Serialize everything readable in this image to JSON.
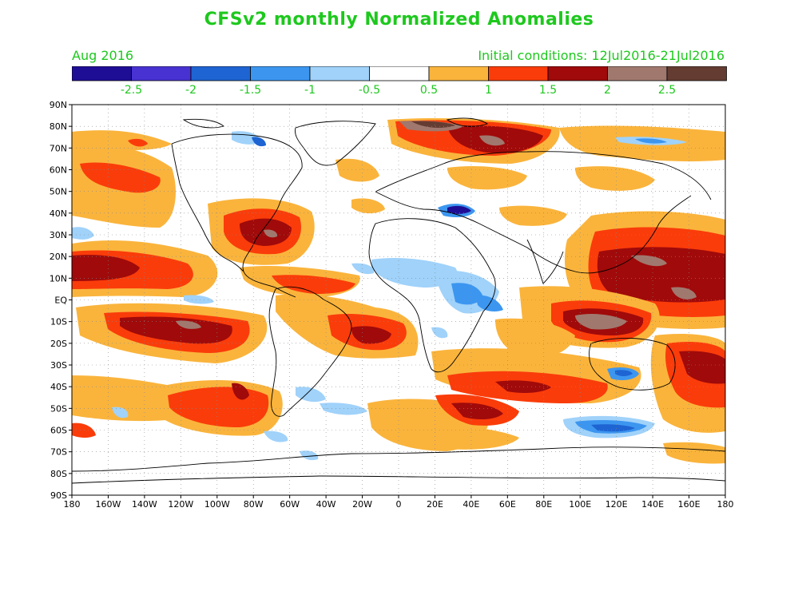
{
  "title": "CFSv2 monthly Normalized Anomalies",
  "target_month": "Aug 2016",
  "initial_conditions": "Initial conditions: 12Jul2016-21Jul2016",
  "colorbar": {
    "colors": [
      "#1e0e96",
      "#4832d2",
      "#1e64d2",
      "#3c96f0",
      "#a0d2fa",
      "#ffffff",
      "#fab43c",
      "#fa3c0a",
      "#a00a0a",
      "#a0786e",
      "#643c32"
    ],
    "labels": [
      "-2.5",
      "-2",
      "-1.5",
      "-1",
      "-0.5",
      "0.5",
      "1",
      "1.5",
      "2",
      "2.5"
    ]
  },
  "axes": {
    "lat_labels": [
      "90N",
      "80N",
      "70N",
      "60N",
      "50N",
      "40N",
      "30N",
      "20N",
      "10N",
      "EQ",
      "10S",
      "20S",
      "30S",
      "40S",
      "50S",
      "60S",
      "70S",
      "80S",
      "90S"
    ],
    "lon_labels": [
      "180",
      "160W",
      "140W",
      "120W",
      "100W",
      "80W",
      "60W",
      "40W",
      "20W",
      "0",
      "20E",
      "40E",
      "60E",
      "80E",
      "100E",
      "120E",
      "140E",
      "160E",
      "180"
    ]
  },
  "anomaly_regions": [
    {
      "name": "north-pacific-warm",
      "level": "1.5"
    },
    {
      "name": "east-pacific-north-warm",
      "level": "2"
    },
    {
      "name": "south-pacific-warm",
      "level": "2"
    },
    {
      "name": "gulf-of-mexico-warm",
      "level": "2"
    },
    {
      "name": "western-pacific-warm",
      "level": "2.5"
    },
    {
      "name": "indonesia-warm",
      "level": "2.5"
    },
    {
      "name": "barents-kara-warm",
      "level": "2.5"
    },
    {
      "name": "black-sea-cold",
      "level": "-2.5"
    },
    {
      "name": "equatorial-atlantic-cool",
      "level": "-1"
    },
    {
      "name": "southern-ocean-cool",
      "level": "-1.5"
    }
  ]
}
